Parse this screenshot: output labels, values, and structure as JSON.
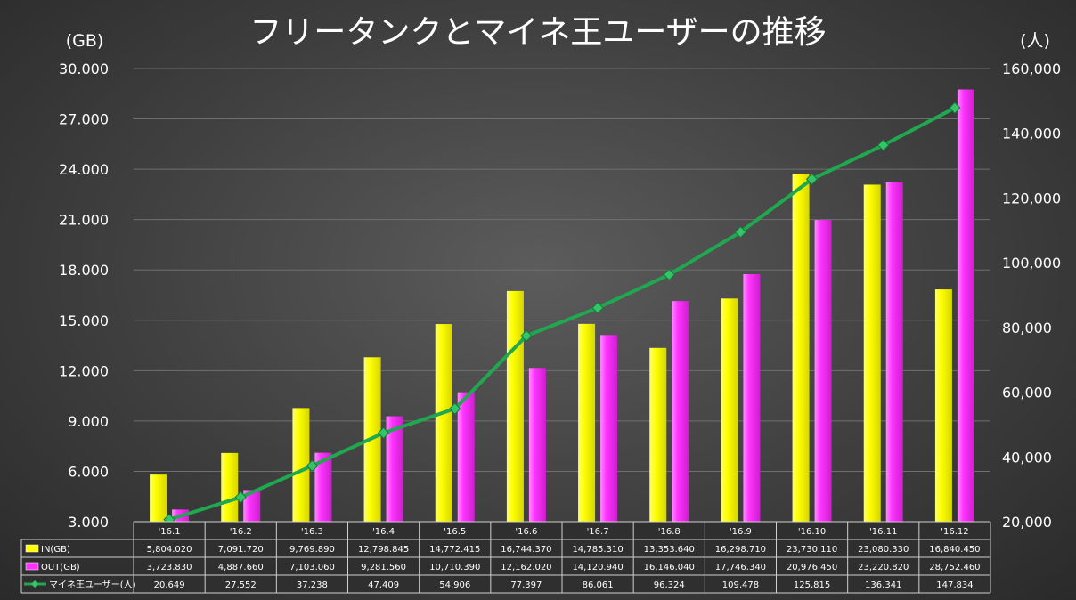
{
  "chart_data": {
    "type": "bar+line",
    "title": "フリータンクとマイネ王ユーザーの推移",
    "y_left_unit": "(GB)",
    "y_right_unit": "(人)",
    "categories": [
      "'16.1",
      "'16.2",
      "'16.3",
      "'16.4",
      "'16.5",
      "'16.6",
      "'16.7",
      "'16.8",
      "'16.9",
      "'16.10",
      "'16.11",
      "'16.12"
    ],
    "ylim_left": [
      3000,
      30000
    ],
    "ylim_right": [
      20000,
      160000
    ],
    "left_ticks": [
      "3.000",
      "6.000",
      "9.000",
      "12.000",
      "15.000",
      "18.000",
      "21.000",
      "24.000",
      "27.000",
      "30.000"
    ],
    "left_tick_values": [
      3000,
      6000,
      9000,
      12000,
      15000,
      18000,
      21000,
      24000,
      27000,
      30000
    ],
    "right_ticks": [
      "20,000",
      "40,000",
      "60,000",
      "80,000",
      "100,000",
      "120,000",
      "140,000",
      "160,000"
    ],
    "right_tick_values": [
      20000,
      40000,
      60000,
      80000,
      100000,
      120000,
      140000,
      160000
    ],
    "series": [
      {
        "name": "IN(GB)",
        "kind": "bar",
        "axis": "left",
        "color": "#ffff00",
        "values": [
          5804.02,
          7091.72,
          9769.89,
          12798.845,
          14772.415,
          16744.37,
          14785.31,
          13353.64,
          16298.71,
          23730.11,
          23080.33,
          16840.45
        ],
        "labels": [
          "5,804.020",
          "7,091.720",
          "9,769.890",
          "12,798.845",
          "14,772.415",
          "16,744.370",
          "14,785.310",
          "13,353.640",
          "16,298.710",
          "23,730.110",
          "23,080.330",
          "16,840.450"
        ]
      },
      {
        "name": "OUT(GB)",
        "kind": "bar",
        "axis": "left",
        "color": "#ff33ff",
        "values": [
          3723.83,
          4887.66,
          7103.06,
          9281.56,
          10710.39,
          12162.02,
          14120.94,
          16146.04,
          17746.34,
          20976.45,
          23220.82,
          28752.46
        ],
        "labels": [
          "3,723.830",
          "4,887.660",
          "7,103.060",
          "9,281.560",
          "10,710.390",
          "12,162.020",
          "14,120.940",
          "16,146.040",
          "17,746.340",
          "20,976.450",
          "23,220.820",
          "28,752.460"
        ]
      },
      {
        "name": "マイネ王ユーザー(人)",
        "kind": "line",
        "axis": "right",
        "color": "#1fa84f",
        "values": [
          20649,
          27552,
          37238,
          47409,
          54906,
          77397,
          86061,
          96324,
          109478,
          125815,
          136341,
          147834
        ],
        "labels": [
          "20,649",
          "27,552",
          "37,238",
          "47,409",
          "54,906",
          "77,397",
          "86,061",
          "96,324",
          "109,478",
          "125,815",
          "136,341",
          "147,834"
        ]
      }
    ]
  }
}
